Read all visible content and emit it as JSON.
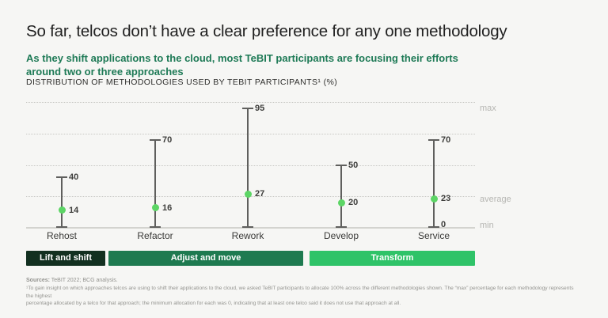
{
  "page": {
    "background": "#f6f6f4"
  },
  "header": {
    "title": "So far, telcos don’t have a clear preference for any one methodology",
    "subtitle_line1": "As they shift applications to the cloud, most TeBIT participants are focusing their efforts",
    "subtitle_line2": "around two or three approaches",
    "kicker": "DISTRIBUTION OF METHODOLOGIES USED BY TEBIT PARTICIPANTS¹ (%)"
  },
  "chart_data": {
    "type": "scatter",
    "subtype": "dot-with-min-max-range",
    "title": "DISTRIBUTION OF METHODOLOGIES USED BY TEBIT PARTICIPANTS¹ (%)",
    "categories": [
      "Rehost",
      "Refactor",
      "Rework",
      "Develop",
      "Service"
    ],
    "series": [
      {
        "name": "max",
        "values": [
          40,
          70,
          95,
          50,
          70
        ]
      },
      {
        "name": "average",
        "values": [
          14,
          16,
          27,
          20,
          23
        ]
      },
      {
        "name": "min",
        "values": [
          0,
          0,
          0,
          0,
          0
        ]
      }
    ],
    "min_value_label_shown_only_for": "Service",
    "ylim": [
      0,
      100
    ],
    "gridline_values": [
      100,
      75,
      50,
      25
    ],
    "axis_value": 0,
    "grid": "dotted-horizontal",
    "right_labels": [
      "max",
      "average",
      "min"
    ],
    "xlabel": "",
    "ylabel": "%"
  },
  "method_groups": [
    {
      "label": "Lift and shift",
      "color": "#123020",
      "categories": [
        "Rehost"
      ]
    },
    {
      "label": "Adjust and move",
      "color": "#1e7a50",
      "categories": [
        "Refactor",
        "Rework"
      ]
    },
    {
      "label": "Transform",
      "color": "#2fc368",
      "categories": [
        "Develop",
        "Service"
      ]
    }
  ],
  "colors": {
    "background": "#f6f6f4",
    "title_text": "#212121",
    "subtitle_green": "#1e7a56",
    "dot_green": "#5cd565",
    "whisker_gray": "#5f5f5d",
    "gridline_gray": "#c7c7c3",
    "axis_gray": "#d3d3cf",
    "side_label_gray": "#b6b6b2"
  },
  "footer": {
    "sources_label": "Sources:",
    "sources_text": " TeBIT 2022; BCG analysis.",
    "footnote_line1": "¹To gain insight on which approaches telcos are using to shift their applications to the cloud, we asked TeBIT participants to allocate 100% across the different methodologies shown. The “max” percentage for each methodology represents the highest",
    "footnote_line2": "percentage allocated by a telco for that approach; the minimum allocation for each was 0, indicating that at least one telco said it does not use that approach at all."
  }
}
